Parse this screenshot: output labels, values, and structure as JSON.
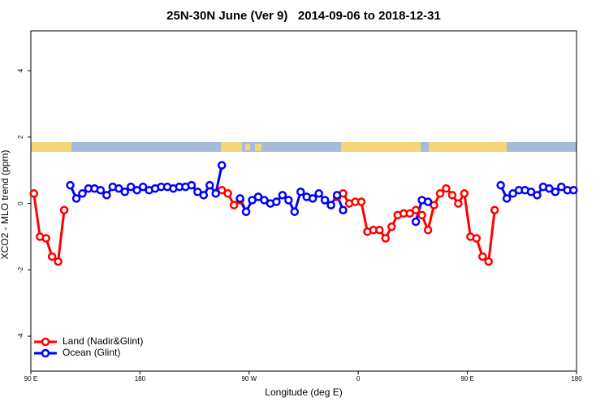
{
  "chart_data": {
    "type": "line",
    "title": "25N-30N June (Ver 9)   2014-09-06 to 2018-12-31",
    "x_label": "Longitude (deg E)",
    "y_label": "XCO2 - MLO trend (ppm)",
    "xlim": [
      90,
      540
    ],
    "xticks": [
      {
        "value": 90,
        "label": "90 E"
      },
      180,
      {
        "value": 270,
        "label": "90 W"
      },
      {
        "value": 360,
        "label": "0"
      },
      {
        "value": 450,
        "label": "90 E"
      },
      {
        "value": 540,
        "label": "180"
      }
    ],
    "ylim": [
      -5.05,
      5.2
    ],
    "yticks": [
      -4,
      -2,
      0,
      2,
      4
    ],
    "legend": "bottom-left",
    "x": [
      92.5,
      97.5,
      102.5,
      107.5,
      112.5,
      117.5,
      122.5,
      127.5,
      132.5,
      137.5,
      142.5,
      147.5,
      152.5,
      157.5,
      162.5,
      167.5,
      172.5,
      177.5,
      182.5,
      187.5,
      192.5,
      197.5,
      202.5,
      207.5,
      212.5,
      217.5,
      222.5,
      227.5,
      232.5,
      237.5,
      242.5,
      247.5,
      252.5,
      257.5,
      262.5,
      267.5,
      272.5,
      277.5,
      282.5,
      287.5,
      292.5,
      297.5,
      302.5,
      307.5,
      312.5,
      317.5,
      322.5,
      327.5,
      332.5,
      337.5,
      342.5,
      347.5,
      352.5,
      357.5,
      362.5,
      367.5,
      372.5,
      377.5,
      382.5,
      387.5,
      392.5,
      397.5,
      402.5,
      407.5,
      412.5,
      417.5,
      422.5,
      427.5,
      432.5,
      437.5,
      442.5,
      447.5,
      452.5,
      457.5,
      462.5,
      467.5,
      472.5,
      477.5,
      482.5,
      487.5,
      492.5,
      497.5,
      502.5,
      507.5,
      512.5,
      517.5,
      522.5,
      527.5,
      532.5,
      537.5
    ],
    "series": [
      {
        "name": "Land (Nadir&Glint)",
        "color": "#ff0000",
        "values": [
          0.3,
          -1.0,
          -1.05,
          -1.6,
          -1.75,
          -0.2,
          null,
          null,
          null,
          null,
          null,
          null,
          null,
          null,
          null,
          null,
          null,
          null,
          null,
          null,
          null,
          null,
          null,
          null,
          null,
          null,
          null,
          null,
          null,
          null,
          null,
          0.4,
          0.3,
          -0.05,
          0.1,
          -0.25,
          null,
          null,
          null,
          null,
          null,
          null,
          null,
          null,
          null,
          null,
          null,
          null,
          null,
          null,
          0.2,
          0.3,
          0.0,
          0.05,
          0.05,
          -0.85,
          -0.8,
          -0.8,
          -1.05,
          -0.7,
          -0.35,
          -0.3,
          -0.3,
          -0.2,
          -0.35,
          -0.8,
          -0.05,
          0.3,
          0.45,
          0.25,
          0.0,
          0.3,
          -1.0,
          -1.05,
          -1.6,
          -1.75,
          -0.2,
          null,
          null,
          null,
          null,
          null,
          null,
          null,
          null,
          null,
          null,
          null,
          null,
          null
        ]
      },
      {
        "name": "Ocean (Glint)",
        "color": "#0000ff",
        "values": [
          null,
          null,
          null,
          null,
          null,
          null,
          0.55,
          0.15,
          0.3,
          0.45,
          0.45,
          0.4,
          0.25,
          0.5,
          0.45,
          0.35,
          0.5,
          0.4,
          0.5,
          0.4,
          0.45,
          0.5,
          0.5,
          0.45,
          0.5,
          0.5,
          0.55,
          0.35,
          0.25,
          0.55,
          0.3,
          1.15,
          null,
          null,
          0.15,
          -0.25,
          0.1,
          0.2,
          0.1,
          0.0,
          0.05,
          0.25,
          0.1,
          -0.25,
          0.35,
          0.2,
          0.15,
          0.3,
          0.1,
          -0.05,
          0.25,
          -0.2,
          null,
          null,
          null,
          null,
          null,
          null,
          null,
          null,
          null,
          null,
          null,
          -0.55,
          0.1,
          0.05,
          null,
          null,
          null,
          null,
          null,
          null,
          null,
          null,
          null,
          null,
          null,
          0.55,
          0.15,
          0.3,
          0.4,
          0.4,
          0.35,
          0.25,
          0.5,
          0.45,
          0.35,
          0.5,
          0.4,
          0.4
        ]
      }
    ]
  }
}
